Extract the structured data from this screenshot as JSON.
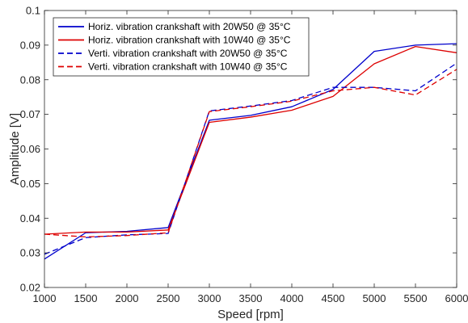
{
  "chart_data": {
    "type": "line",
    "title": "",
    "xlabel": "Speed [rpm]",
    "ylabel": "Amplitude [V]",
    "xlim": [
      1000,
      6000
    ],
    "ylim": [
      0.02,
      0.1
    ],
    "xticks": [
      1000,
      1500,
      2000,
      2500,
      3000,
      3500,
      4000,
      4500,
      5000,
      5500,
      6000
    ],
    "yticks": [
      0.02,
      0.03,
      0.04,
      0.05,
      0.06,
      0.07,
      0.08,
      0.09,
      0.1
    ],
    "xtick_labels": [
      "1000",
      "1500",
      "2000",
      "2500",
      "3000",
      "3500",
      "4000",
      "4500",
      "5000",
      "5500",
      "6000"
    ],
    "ytick_labels": [
      "0.02",
      "0.03",
      "0.04",
      "0.05",
      "0.06",
      "0.07",
      "0.08",
      "0.09",
      "0.1"
    ],
    "grid": false,
    "legend_position": "top-left",
    "x": [
      1000,
      1500,
      2000,
      2500,
      3000,
      3500,
      4000,
      4500,
      5000,
      5500,
      6000
    ],
    "series": [
      {
        "name": "Horiz. vibration crankshaft with 20W50 @ 35°C",
        "color": "#0000cc",
        "dash": "solid",
        "values": [
          0.0282,
          0.0358,
          0.0362,
          0.0373,
          0.0683,
          0.0697,
          0.0722,
          0.0772,
          0.0882,
          0.09,
          0.0904
        ]
      },
      {
        "name": "Horiz. vibration crankshaft with 10W40 @ 35°C",
        "color": "#dd0000",
        "dash": "solid",
        "values": [
          0.0354,
          0.036,
          0.036,
          0.0366,
          0.0677,
          0.0692,
          0.0712,
          0.0752,
          0.0846,
          0.0896,
          0.0878
        ]
      },
      {
        "name": "Verti. vibration crankshaft with 20W50 @ 35°C",
        "color": "#0000cc",
        "dash": "dashed",
        "values": [
          0.0296,
          0.0344,
          0.0352,
          0.0356,
          0.071,
          0.0724,
          0.074,
          0.0778,
          0.0778,
          0.0768,
          0.0848
        ]
      },
      {
        "name": "Verti. vibration crankshaft with 10W40 @ 35°C",
        "color": "#dd0000",
        "dash": "dashed",
        "values": [
          0.0354,
          0.0346,
          0.035,
          0.0358,
          0.0708,
          0.0722,
          0.0738,
          0.0768,
          0.0778,
          0.0756,
          0.083
        ]
      }
    ]
  }
}
